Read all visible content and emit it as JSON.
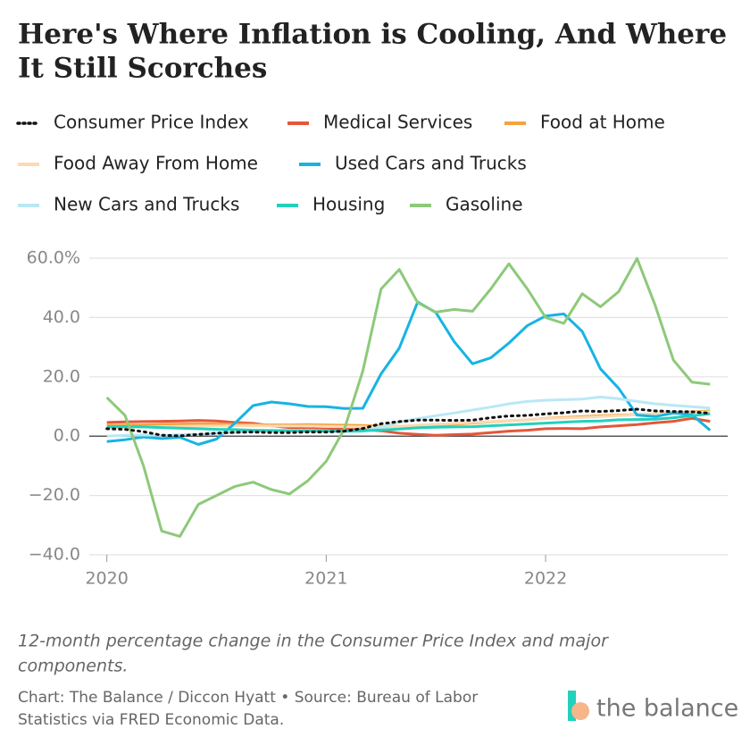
{
  "chart_data": {
    "type": "line",
    "title_lines": [
      "Here's Where Inflation is Cooling, And Where",
      "It Still Scorches"
    ],
    "caption_lines": [
      "12-month percentage change in the Consumer Price Index and major",
      "components."
    ],
    "source_lines": [
      "Chart: The Balance / Diccon Hyatt • Source: Bureau of Labor",
      "Statistics via FRED Economic Data."
    ],
    "logo": "the balance",
    "x": [
      2020,
      2020.083,
      2020.167,
      2020.25,
      2020.333,
      2020.417,
      2020.5,
      2020.583,
      2020.667,
      2020.75,
      2020.833,
      2020.917,
      2021,
      2021.083,
      2021.167,
      2021.25,
      2021.333,
      2021.417,
      2021.5,
      2021.583,
      2021.667,
      2021.75,
      2021.833,
      2021.917,
      2022,
      2022.083,
      2022.167,
      2022.25,
      2022.333,
      2022.417,
      2022.5,
      2022.583,
      2022.667,
      2022.75
    ],
    "xlim": [
      2019.92,
      2022.83
    ],
    "xticks": [
      2020,
      2021,
      2022
    ],
    "ylim": [
      -40,
      60
    ],
    "yticks": [
      {
        "value": 60,
        "label": "60.0%"
      },
      {
        "value": 40,
        "label": "40.0"
      },
      {
        "value": 20,
        "label": "20.0"
      },
      {
        "value": 0,
        "label": "0.0"
      },
      {
        "value": -20,
        "label": "−20.0"
      },
      {
        "value": -40,
        "label": "−40.0"
      }
    ],
    "grid": true,
    "series": [
      {
        "name": "Consumer Price Index",
        "color": "#111111",
        "dash": "dotted",
        "values": [
          2.5,
          2.3,
          1.5,
          0.3,
          0.1,
          0.6,
          1.0,
          1.3,
          1.4,
          1.2,
          1.2,
          1.4,
          1.4,
          1.7,
          2.6,
          4.2,
          4.9,
          5.4,
          5.4,
          5.3,
          5.4,
          6.2,
          6.8,
          7.0,
          7.5,
          7.9,
          8.5,
          8.3,
          8.6,
          9.1,
          8.5,
          8.3,
          8.2,
          7.7
        ]
      },
      {
        "name": "Medical Services",
        "color": "#e4573b",
        "values": [
          4.6,
          4.8,
          4.9,
          5.0,
          5.1,
          5.3,
          5.1,
          4.6,
          4.3,
          3.5,
          2.9,
          2.5,
          2.4,
          2.4,
          2.2,
          1.8,
          1.0,
          0.6,
          0.3,
          0.5,
          0.7,
          1.2,
          1.7,
          2.0,
          2.5,
          2.6,
          2.5,
          3.1,
          3.5,
          3.9,
          4.5,
          5.0,
          6.0,
          5.0
        ]
      },
      {
        "name": "Food at Home",
        "color": "#f5a33f",
        "values": [
          3.6,
          3.7,
          3.8,
          4.0,
          4.1,
          4.2,
          4.1,
          4.0,
          3.9,
          3.8,
          3.8,
          3.9,
          3.8,
          3.7,
          3.6,
          3.4,
          3.3,
          3.5,
          3.7,
          4.0,
          4.4,
          4.8,
          5.2,
          5.5,
          6.0,
          6.3,
          6.6,
          6.9,
          7.1,
          7.3,
          7.5,
          7.9,
          8.2,
          8.5
        ]
      },
      {
        "name": "Food Away From Home",
        "color": "#fcd9b6",
        "values": [
          3.0,
          3.0,
          3.1,
          3.2,
          3.3,
          3.4,
          3.4,
          3.5,
          3.5,
          3.4,
          3.4,
          3.4,
          3.3,
          3.2,
          3.1,
          3.1,
          3.3,
          3.7,
          4.0,
          4.3,
          4.6,
          4.9,
          5.3,
          5.6,
          5.9,
          6.1,
          6.3,
          6.6,
          6.9,
          7.2,
          7.5,
          7.7,
          8.0,
          8.2
        ]
      },
      {
        "name": "Used Cars and Trucks",
        "color": "#16b4e3",
        "values": [
          -1.8,
          -1.2,
          -0.3,
          -0.8,
          -0.4,
          -2.8,
          -1.0,
          4.3,
          10.3,
          11.5,
          10.9,
          10.0,
          9.9,
          9.3,
          9.4,
          21.0,
          29.7,
          45.2,
          41.7,
          31.9,
          24.4,
          26.4,
          31.4,
          37.3,
          40.5,
          41.2,
          35.3,
          22.7,
          16.1,
          7.1,
          6.6,
          7.8,
          7.2,
          2.0
        ]
      },
      {
        "name": "New Cars and Trucks",
        "color": "#b9e8f5",
        "values": [
          0.0,
          0.3,
          0.4,
          0.3,
          0.5,
          0.6,
          0.9,
          1.2,
          1.5,
          1.9,
          2.0,
          2.0,
          1.8,
          1.5,
          1.6,
          3.1,
          4.8,
          5.9,
          6.9,
          7.8,
          8.8,
          9.8,
          10.9,
          11.7,
          12.1,
          12.3,
          12.5,
          13.2,
          12.6,
          11.7,
          10.9,
          10.4,
          9.9,
          9.5
        ]
      },
      {
        "name": "Housing",
        "color": "#22d1bc",
        "values": [
          3.2,
          3.2,
          3.1,
          2.9,
          2.7,
          2.5,
          2.3,
          2.2,
          2.0,
          1.9,
          1.8,
          1.8,
          1.7,
          1.7,
          1.8,
          2.1,
          2.4,
          2.8,
          3.0,
          3.1,
          3.2,
          3.5,
          3.8,
          4.1,
          4.4,
          4.7,
          5.0,
          5.1,
          5.5,
          5.6,
          5.7,
          6.2,
          6.9,
          7.5
        ]
      },
      {
        "name": "Gasoline",
        "color": "#8dc97a",
        "values": [
          13.0,
          7.0,
          -10.0,
          -32.0,
          -33.8,
          -23.0,
          -20.0,
          -17.0,
          -15.5,
          -18.0,
          -19.5,
          -15.0,
          -8.5,
          2.5,
          22.0,
          49.6,
          56.2,
          45.0,
          41.8,
          42.7,
          42.1,
          49.6,
          58.1,
          49.6,
          40.0,
          38.0,
          48.0,
          43.6,
          48.7,
          59.9,
          44.0,
          25.6,
          18.2,
          17.5
        ]
      }
    ]
  }
}
